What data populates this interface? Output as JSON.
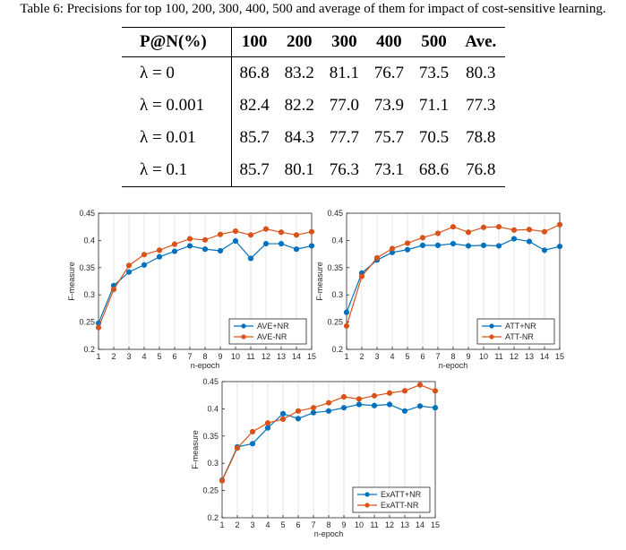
{
  "caption": "Table 6: Precisions for top 100, 200, 300, 400, 500 and average of them for impact of cost-sensitive learning.",
  "table": {
    "headers": [
      "P@N(%)",
      "100",
      "200",
      "300",
      "400",
      "500",
      "Ave."
    ],
    "rows": [
      [
        "λ = 0",
        "86.8",
        "83.2",
        "81.1",
        "76.7",
        "73.5",
        "80.3"
      ],
      [
        "λ = 0.001",
        "82.4",
        "82.2",
        "77.0",
        "73.9",
        "71.1",
        "77.3"
      ],
      [
        "λ = 0.01",
        "85.7",
        "84.3",
        "77.7",
        "75.7",
        "70.5",
        "78.8"
      ],
      [
        "λ = 0.1",
        "85.7",
        "80.1",
        "76.3",
        "73.1",
        "68.6",
        "76.8"
      ]
    ]
  },
  "colors": {
    "series1": "#0072BD",
    "series2": "#D95319",
    "grid": "#dddddd"
  },
  "chart_data": [
    {
      "type": "line",
      "xlabel": "n-epoch",
      "ylabel": "F-measure",
      "x": [
        1,
        2,
        3,
        4,
        5,
        6,
        7,
        8,
        9,
        10,
        11,
        12,
        13,
        14,
        15
      ],
      "xlim": [
        1,
        15
      ],
      "ylim": [
        0.2,
        0.45
      ],
      "yticks": [
        "0.2",
        "0.25",
        "0.3",
        "0.35",
        "0.4",
        "0.45"
      ],
      "grid": "vertical",
      "legend_position": "bottom-right",
      "series": [
        {
          "name": "AVE+NR",
          "values": [
            0.248,
            0.317,
            0.342,
            0.355,
            0.37,
            0.38,
            0.39,
            0.384,
            0.381,
            0.399,
            0.367,
            0.394,
            0.394,
            0.384,
            0.39
          ]
        },
        {
          "name": "AVE-NR",
          "values": [
            0.24,
            0.31,
            0.354,
            0.374,
            0.382,
            0.393,
            0.403,
            0.401,
            0.411,
            0.417,
            0.41,
            0.421,
            0.415,
            0.41,
            0.416
          ]
        }
      ]
    },
    {
      "type": "line",
      "xlabel": "n-epoch",
      "ylabel": "F-measure",
      "x": [
        1,
        2,
        3,
        4,
        5,
        6,
        7,
        8,
        9,
        10,
        11,
        12,
        13,
        14,
        15
      ],
      "xlim": [
        1,
        15
      ],
      "ylim": [
        0.2,
        0.45
      ],
      "yticks": [
        "0.2",
        "0.25",
        "0.3",
        "0.35",
        "0.4",
        "0.45"
      ],
      "grid": "vertical",
      "legend_position": "bottom-right",
      "series": [
        {
          "name": "ATT+NR",
          "values": [
            0.268,
            0.34,
            0.364,
            0.378,
            0.383,
            0.391,
            0.391,
            0.394,
            0.39,
            0.391,
            0.39,
            0.403,
            0.398,
            0.382,
            0.389
          ]
        },
        {
          "name": "ATT-NR",
          "values": [
            0.243,
            0.334,
            0.368,
            0.385,
            0.395,
            0.405,
            0.413,
            0.425,
            0.415,
            0.424,
            0.425,
            0.419,
            0.42,
            0.416,
            0.429
          ]
        }
      ]
    },
    {
      "type": "line",
      "xlabel": "n-epoch",
      "ylabel": "F-measure",
      "x": [
        1,
        2,
        3,
        4,
        5,
        6,
        7,
        8,
        9,
        10,
        11,
        12,
        13,
        14,
        15
      ],
      "xlim": [
        1,
        15
      ],
      "ylim": [
        0.2,
        0.45
      ],
      "yticks": [
        "0.2",
        "0.25",
        "0.3",
        "0.35",
        "0.4",
        "0.45"
      ],
      "grid": "vertical",
      "legend_position": "bottom-right",
      "series": [
        {
          "name": "ExATT+NR",
          "values": [
            0.269,
            0.33,
            0.336,
            0.365,
            0.391,
            0.382,
            0.393,
            0.396,
            0.402,
            0.408,
            0.406,
            0.408,
            0.396,
            0.405,
            0.402
          ]
        },
        {
          "name": "ExATT-NR",
          "values": [
            0.268,
            0.328,
            0.358,
            0.374,
            0.381,
            0.396,
            0.402,
            0.411,
            0.422,
            0.418,
            0.424,
            0.429,
            0.433,
            0.444,
            0.433
          ]
        }
      ]
    }
  ]
}
